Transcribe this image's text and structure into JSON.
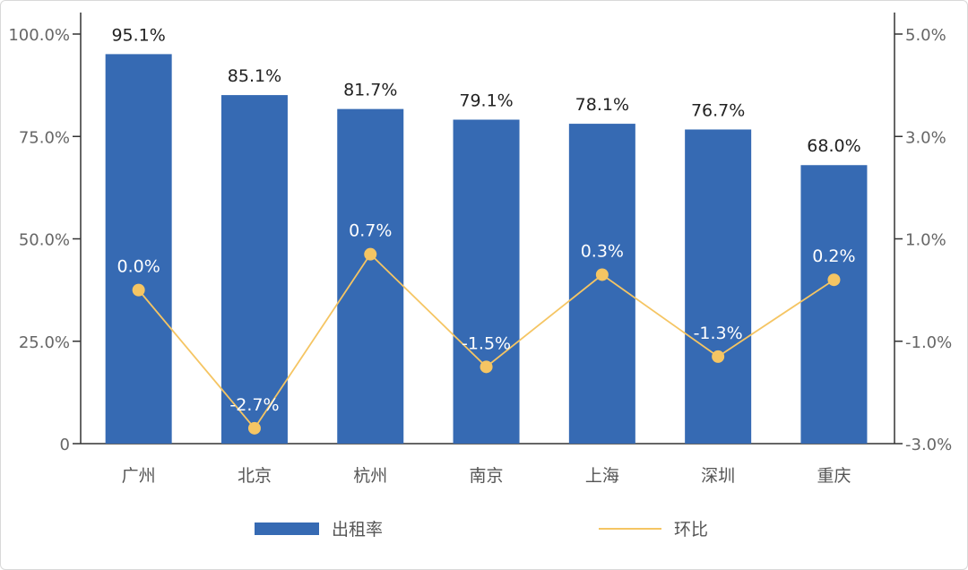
{
  "chart_data": {
    "type": "bar",
    "categories": [
      "广州",
      "北京",
      "杭州",
      "南京",
      "上海",
      "深圳",
      "重庆"
    ],
    "series": [
      {
        "name": "出租率",
        "type": "bar",
        "axis": "left",
        "values": [
          95.1,
          85.1,
          81.7,
          79.1,
          78.1,
          76.7,
          68.0
        ],
        "labels": [
          "95.1%",
          "85.1%",
          "81.7%",
          "79.1%",
          "78.1%",
          "76.7%",
          "68.0%"
        ]
      },
      {
        "name": "环比",
        "type": "line",
        "axis": "right",
        "values": [
          0.0,
          -2.7,
          0.7,
          -1.5,
          0.3,
          -1.3,
          0.2
        ],
        "labels": [
          "0.0%",
          "-2.7%",
          "0.7%",
          "-1.5%",
          "0.3%",
          "-1.3%",
          "0.2%"
        ]
      }
    ],
    "y_left": {
      "ylim": [
        0,
        100
      ],
      "ticks": [
        0,
        25,
        50,
        75,
        100
      ],
      "tick_labels": [
        "0",
        "25.0%",
        "50.0%",
        "75.0%",
        "100.0%"
      ]
    },
    "y_right": {
      "ylim": [
        -3,
        5
      ],
      "ticks": [
        -3,
        -1,
        1,
        3,
        5
      ],
      "tick_labels": [
        "-3.0%",
        "-1.0%",
        "1.0%",
        "3.0%",
        "5.0%"
      ]
    },
    "grid": false,
    "legend": {
      "position": "bottom",
      "entries": [
        "出租率",
        "环比"
      ]
    },
    "colors": {
      "bar": "#366ab3",
      "line": "#f5c563",
      "axis": "#333333"
    }
  }
}
